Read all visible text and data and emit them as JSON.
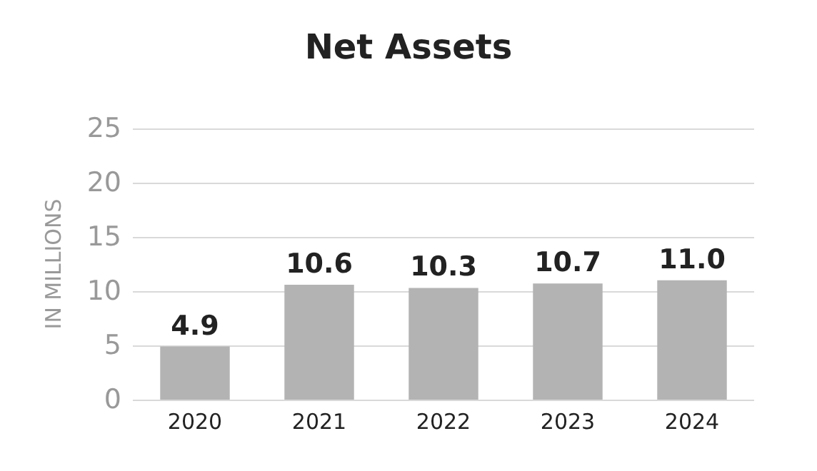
{
  "chart_data": {
    "type": "bar",
    "title": "Net Assets",
    "ylabel": "IN MILLIONS",
    "categories": [
      "2020",
      "2021",
      "2022",
      "2023",
      "2024"
    ],
    "values": [
      4.9,
      10.6,
      10.3,
      10.7,
      11.0
    ],
    "value_labels": [
      "4.9",
      "10.6",
      "10.3",
      "10.7",
      "11.0"
    ],
    "color": "#b3b3b3",
    "ylim": [
      0,
      25
    ],
    "yticks": [
      0,
      5,
      10,
      15,
      20,
      25
    ],
    "grid": "y"
  }
}
